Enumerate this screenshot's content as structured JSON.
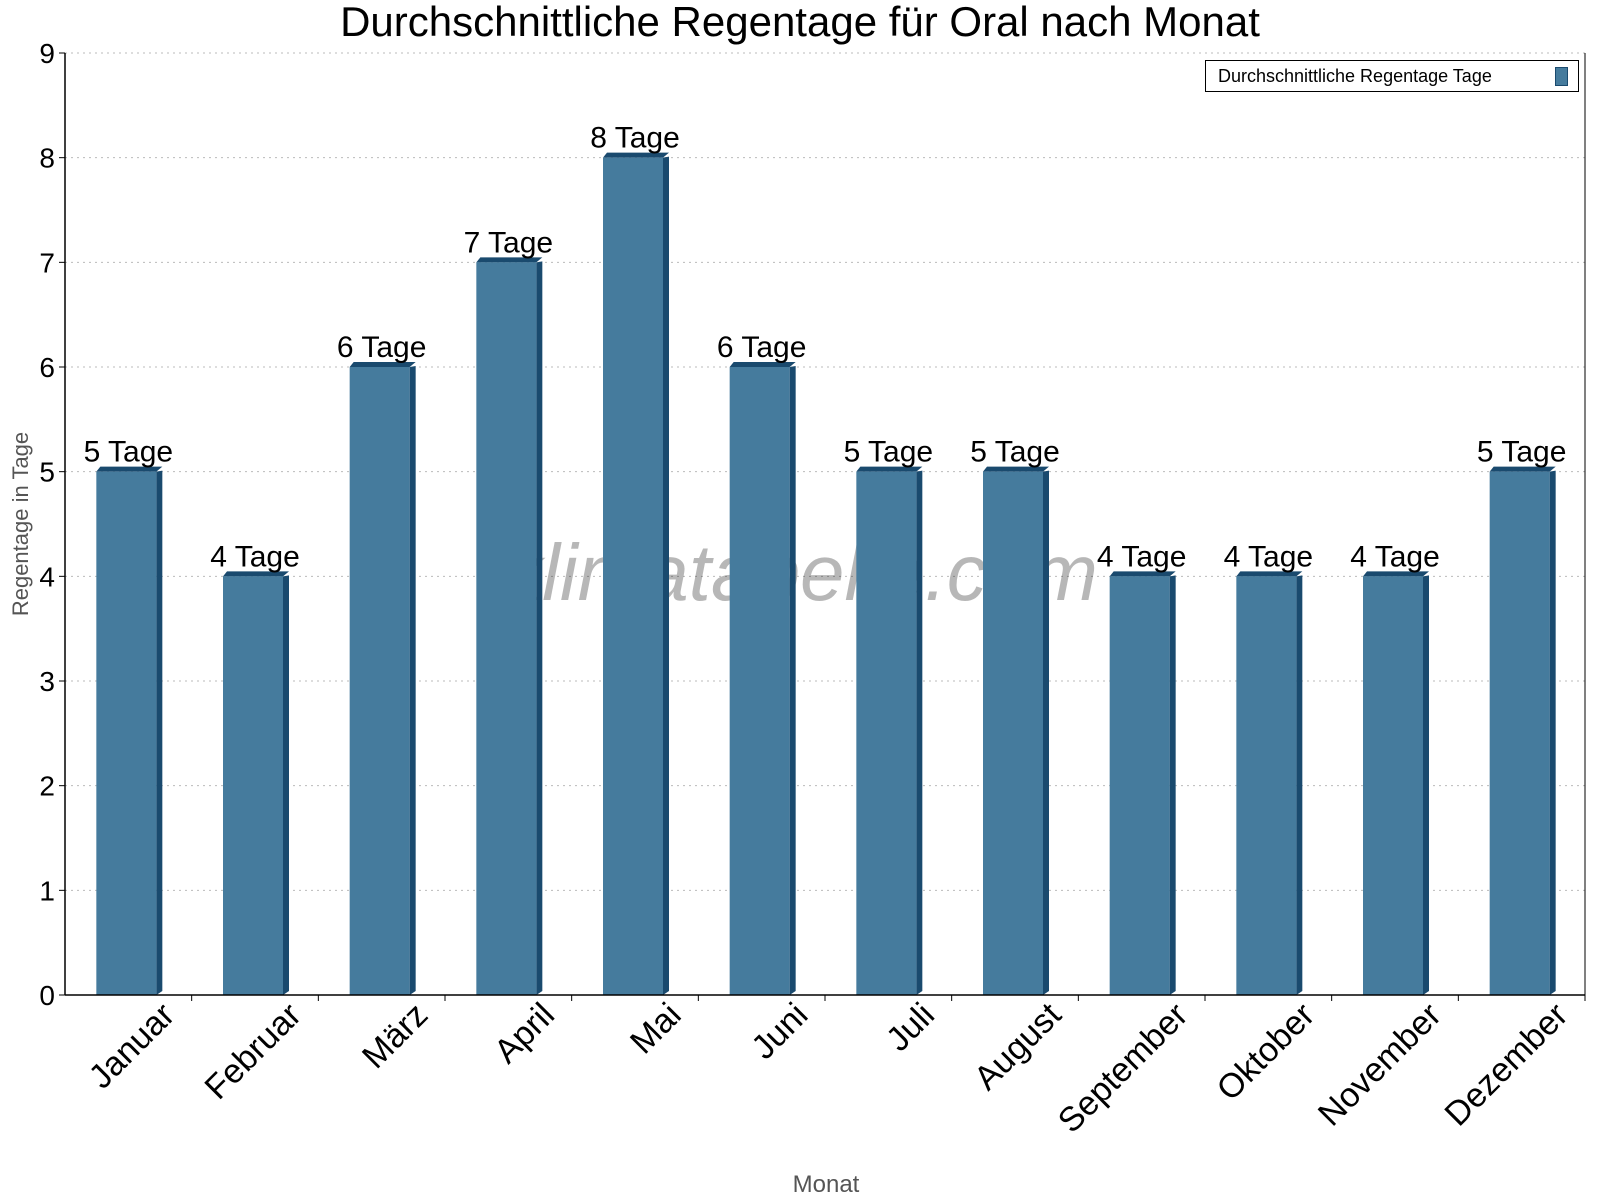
{
  "chart_data": {
    "type": "bar",
    "title": "Durchschnittliche Regentage für Oral nach Monat",
    "xlabel": "Monat",
    "ylabel": "Regentage in Tage",
    "categories": [
      "Januar",
      "Februar",
      "März",
      "April",
      "Mai",
      "Juni",
      "Juli",
      "August",
      "September",
      "Oktober",
      "November",
      "Dezember"
    ],
    "series": [
      {
        "name": "Durchschnittliche Regentage Tage",
        "values": [
          5,
          4,
          6,
          7,
          8,
          6,
          5,
          5,
          4,
          4,
          4,
          5
        ]
      }
    ],
    "data_labels": [
      "5 Tage",
      "4 Tage",
      "6 Tage",
      "7 Tage",
      "8 Tage",
      "6 Tage",
      "5 Tage",
      "5 Tage",
      "4 Tage",
      "4 Tage",
      "4 Tage",
      "5 Tage"
    ],
    "ylim": [
      0,
      9
    ],
    "yticks": [
      "0",
      "1",
      "2",
      "3",
      "4",
      "5",
      "6",
      "7",
      "8",
      "9"
    ],
    "grid": true,
    "legend_position": "top-right",
    "colors": {
      "bar_front": "#457b9d",
      "bar_side": "#1a4a6e"
    },
    "watermark": "klimatabelle.com"
  }
}
